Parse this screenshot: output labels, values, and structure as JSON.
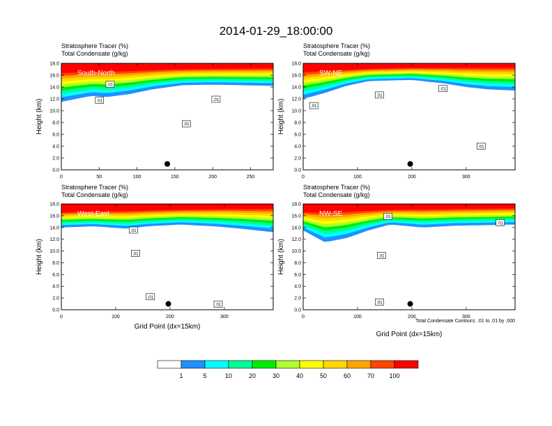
{
  "title": "2014-01-29_18:00:00",
  "panel_titles": {
    "tracer": "Stratosphere Tracer   (%)",
    "condensate": "Total Condensate   (g/kg)"
  },
  "axis_labels": {
    "y": "Height (km)",
    "x": "Grid Point (dx=15km)"
  },
  "contour_note": "Total Condensate Contours: .01 to .01 by .000",
  "colors": {
    "levels": [
      "#ffffff",
      "#1e90ff",
      "#00ffff",
      "#00fa9a",
      "#00ee00",
      "#adff2f",
      "#ffff00",
      "#ffd700",
      "#ffa500",
      "#ff4500",
      "#ff0000"
    ],
    "marker": "#000000"
  },
  "chart_data": [
    {
      "type": "heatmap",
      "label": "South-North",
      "ylim": [
        0,
        18
      ],
      "xlim": [
        0,
        280
      ],
      "x_ticks": [
        "0",
        "50",
        "100",
        "150",
        "200",
        "250"
      ],
      "y_ticks": [
        "0.0",
        "2.0",
        "4.0",
        "6.0",
        "8.0",
        "10.0",
        "12.0",
        "14.0",
        "16.0",
        "18.0"
      ],
      "tracer_top_km": [
        [
          0,
          16.8
        ],
        [
          40,
          16.9
        ],
        [
          80,
          17.0
        ],
        [
          140,
          17.2
        ],
        [
          200,
          17.3
        ],
        [
          280,
          17.4
        ]
      ],
      "tracer_bottom_km": [
        [
          0,
          11.5
        ],
        [
          40,
          12.5
        ],
        [
          60,
          12.3
        ],
        [
          90,
          12.8
        ],
        [
          120,
          13.6
        ],
        [
          160,
          14.3
        ],
        [
          200,
          14.4
        ],
        [
          240,
          14.3
        ],
        [
          280,
          14.2
        ]
      ],
      "contour_labels": [
        ".01",
        ".01",
        ".01",
        ".01"
      ],
      "marker": {
        "x": 140,
        "y": 1.0
      }
    },
    {
      "type": "heatmap",
      "label": "SW-NE",
      "ylim": [
        0,
        18
      ],
      "xlim": [
        0,
        390
      ],
      "x_ticks": [
        "0",
        "100",
        "200",
        "300"
      ],
      "y_ticks": [
        "0.0",
        "2.0",
        "4.0",
        "6.0",
        "8.0",
        "10.0",
        "12.0",
        "14.0",
        "16.0",
        "18.0"
      ],
      "tracer_top_km": [
        [
          0,
          16.9
        ],
        [
          100,
          17.2
        ],
        [
          200,
          17.4
        ],
        [
          300,
          17.5
        ],
        [
          390,
          17.6
        ]
      ],
      "tracer_bottom_km": [
        [
          0,
          12.0
        ],
        [
          40,
          13.0
        ],
        [
          80,
          14.2
        ],
        [
          120,
          15.0
        ],
        [
          200,
          15.2
        ],
        [
          260,
          14.6
        ],
        [
          300,
          14.0
        ],
        [
          340,
          13.6
        ],
        [
          390,
          13.4
        ]
      ],
      "contour_labels": [
        ".01",
        ".01",
        ".01",
        ".01"
      ],
      "marker": {
        "x": 197,
        "y": 1.0
      }
    },
    {
      "type": "heatmap",
      "label": "West-East",
      "ylim": [
        0,
        18
      ],
      "xlim": [
        0,
        390
      ],
      "x_ticks": [
        "0",
        "100",
        "200",
        "300"
      ],
      "y_ticks": [
        "0.0",
        "2.0",
        "4.0",
        "6.0",
        "8.0",
        "10.0",
        "12.0",
        "14.0",
        "16.0",
        "18.0"
      ],
      "tracer_top_km": [
        [
          0,
          16.8
        ],
        [
          100,
          17.0
        ],
        [
          200,
          17.2
        ],
        [
          300,
          17.4
        ],
        [
          390,
          17.5
        ]
      ],
      "tracer_bottom_km": [
        [
          0,
          14.0
        ],
        [
          60,
          14.2
        ],
        [
          120,
          13.8
        ],
        [
          160,
          14.2
        ],
        [
          220,
          14.5
        ],
        [
          280,
          14.2
        ],
        [
          330,
          13.8
        ],
        [
          390,
          13.2
        ]
      ],
      "contour_labels": [
        ".01",
        ".01",
        ".01",
        ".01"
      ],
      "marker": {
        "x": 197,
        "y": 1.0
      }
    },
    {
      "type": "heatmap",
      "label": "NW-SE",
      "ylim": [
        0,
        18
      ],
      "xlim": [
        0,
        390
      ],
      "x_ticks": [
        "0",
        "100",
        "200",
        "300"
      ],
      "y_ticks": [
        "0.0",
        "2.0",
        "4.0",
        "6.0",
        "8.0",
        "10.0",
        "12.0",
        "14.0",
        "16.0",
        "18.0"
      ],
      "tracer_top_km": [
        [
          0,
          16.9
        ],
        [
          100,
          17.1
        ],
        [
          200,
          17.3
        ],
        [
          300,
          17.4
        ],
        [
          390,
          17.5
        ]
      ],
      "tracer_bottom_km": [
        [
          0,
          13.5
        ],
        [
          40,
          11.5
        ],
        [
          80,
          12.2
        ],
        [
          120,
          13.5
        ],
        [
          160,
          14.5
        ],
        [
          220,
          14.0
        ],
        [
          280,
          14.3
        ],
        [
          340,
          14.4
        ],
        [
          390,
          14.5
        ]
      ],
      "contour_labels": [
        ".01",
        ".01",
        ".01",
        ".01"
      ],
      "marker": {
        "x": 197,
        "y": 1.0
      }
    }
  ],
  "colorbar": {
    "labels": [
      "1",
      "5",
      "10",
      "20",
      "30",
      "40",
      "50",
      "60",
      "70",
      "100"
    ]
  }
}
